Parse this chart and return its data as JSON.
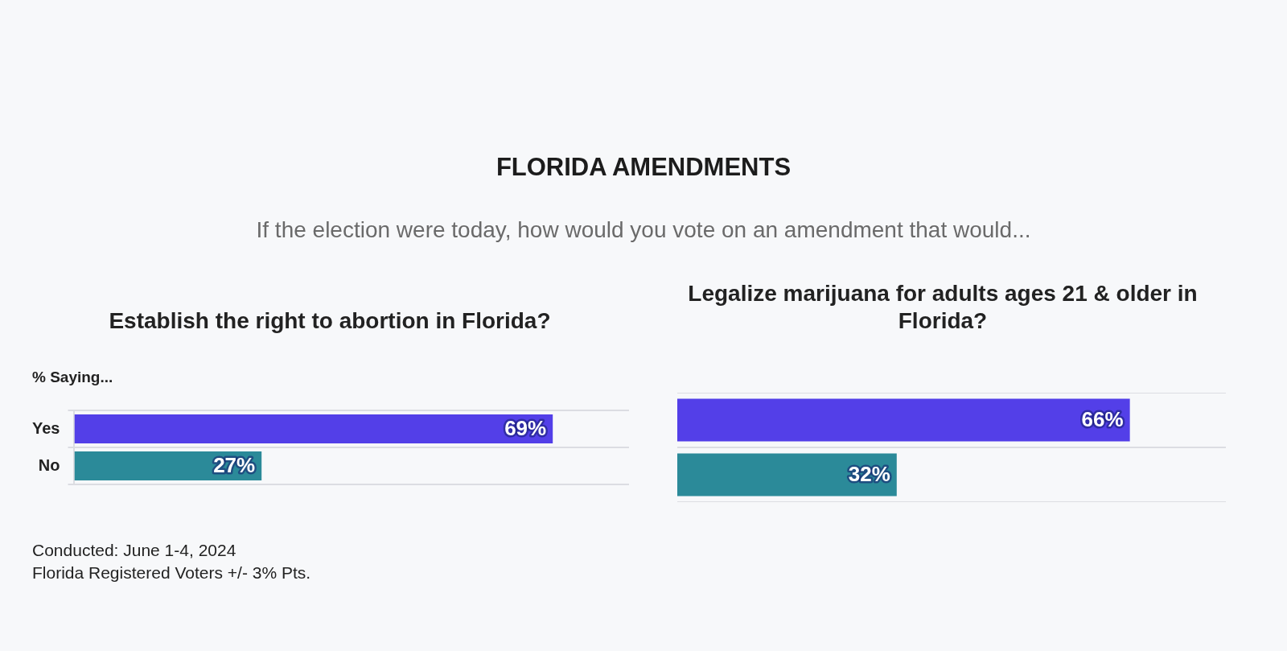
{
  "chart_data": [
    {
      "type": "other",
      "title": "FLORIDA AMENDMENTS",
      "subtitle": "If the election were today, how would you vote on an amendment that would...",
      "annotations": [
        "Conducted: June 1-4, 2024",
        "Florida Registered Voters +/- 3% Pts."
      ]
    },
    {
      "type": "bar",
      "orientation": "horizontal",
      "title": "Establish the right to abortion in Florida?",
      "ylabel": "% Saying...",
      "categories": [
        "Yes",
        "No"
      ],
      "values": [
        69,
        27
      ],
      "colors": [
        "#533fe8",
        "#2b8a99"
      ],
      "value_labels": [
        "69%",
        "27%"
      ],
      "xlim": [
        0,
        80
      ],
      "grid": "y"
    },
    {
      "type": "bar",
      "orientation": "horizontal",
      "title": "Legalize marijuana for adults ages 21 & older in Florida?",
      "categories": [
        null,
        null
      ],
      "values": [
        66,
        32
      ],
      "colors": [
        "#533fe8",
        "#2b8a99"
      ],
      "value_labels": [
        "66%",
        "32%"
      ],
      "xlim": [
        0,
        80
      ],
      "grid": "y"
    }
  ]
}
